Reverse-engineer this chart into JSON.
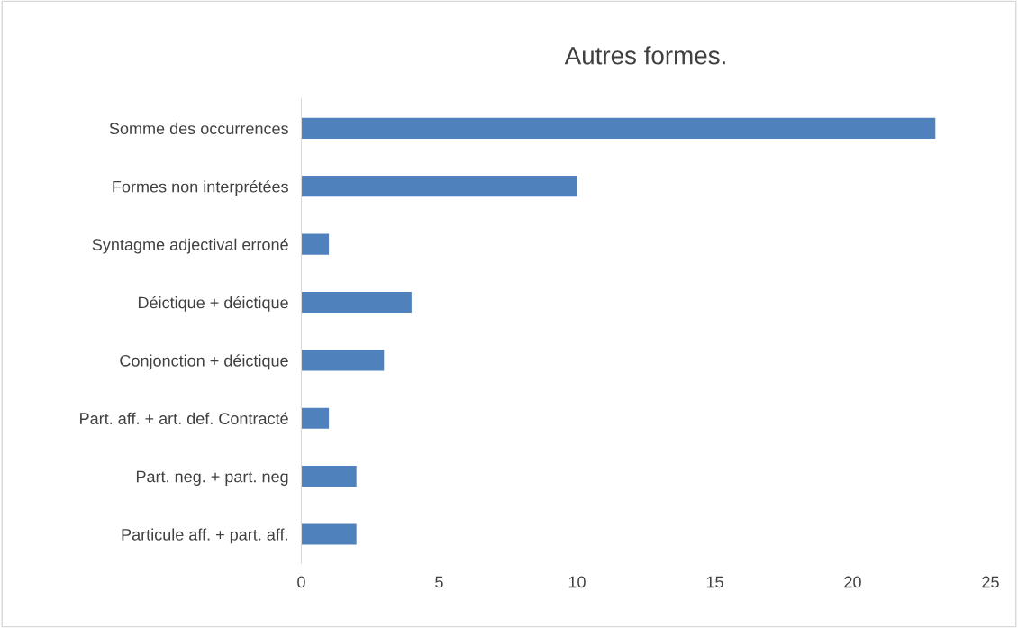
{
  "chart_data": {
    "type": "bar",
    "orientation": "horizontal",
    "title": "Autres formes.",
    "categories": [
      "Somme des occurrences",
      "Formes non interprétées",
      "Syntagme adjectival erroné",
      "Déictique + déictique",
      "Conjonction + déictique",
      "Part. aff. + art. def. Contracté",
      "Part. neg. + part. neg",
      "Particule aff. + part. aff."
    ],
    "values": [
      23,
      10,
      1,
      4,
      3,
      1,
      2,
      2
    ],
    "color": "#4f81bd",
    "xlim": [
      0,
      25
    ],
    "xticks": [
      0,
      5,
      10,
      15,
      20,
      25
    ],
    "grid": false,
    "legend": false
  }
}
